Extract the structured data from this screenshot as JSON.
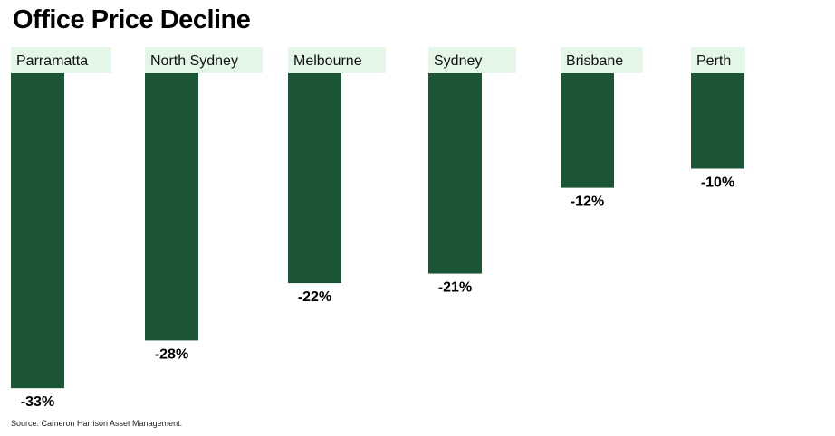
{
  "chart_data": {
    "type": "bar",
    "title": "Office Price Decline",
    "categories": [
      "Parramatta",
      "North Sydney",
      "Melbourne",
      "Sydney",
      "Brisbane",
      "Perth"
    ],
    "values": [
      -33,
      -28,
      -22,
      -21,
      -12,
      -10
    ],
    "value_labels": [
      "-33%",
      "-28%",
      "-22%",
      "-21%",
      "-12%",
      "-10%"
    ],
    "unit": "%",
    "ylim": [
      -33,
      0
    ],
    "grid": false,
    "legend": "none",
    "bar_color": "#1c5535",
    "label_bg_color": "#e3f6e8"
  },
  "source": "Source: Cameron Harrison Asset Management."
}
